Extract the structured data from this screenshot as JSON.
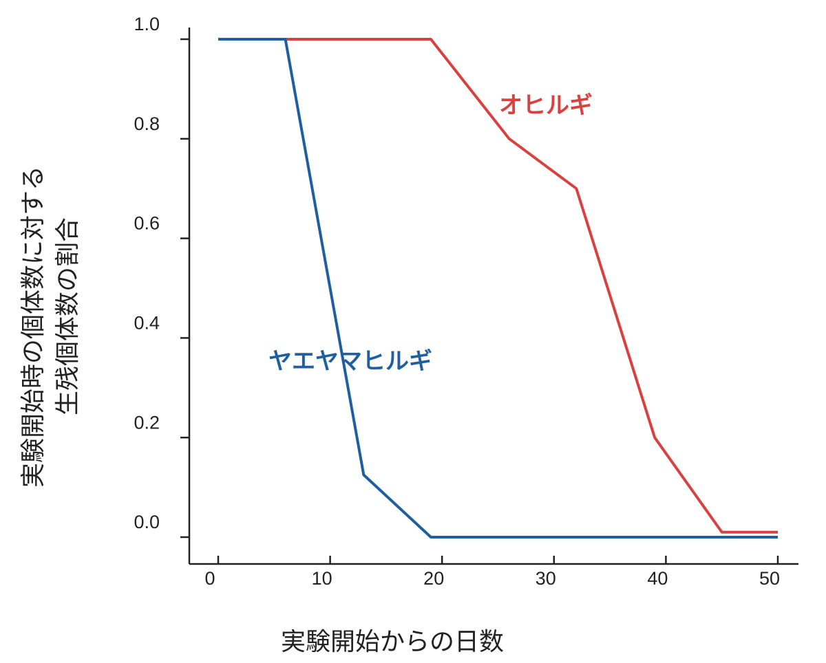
{
  "chart_data": {
    "type": "line",
    "xlabel": "実験開始からの日数",
    "ylabel": [
      "実験開始時の個体数に対する",
      "生残個体数の割合"
    ],
    "x": [
      0,
      6,
      13,
      19,
      26,
      32,
      39,
      45,
      50
    ],
    "series": [
      {
        "name": "オヒルギ",
        "color": "#d9413f",
        "values": [
          1.0,
          1.0,
          1.0,
          1.0,
          0.8,
          0.7,
          0.2,
          0.01,
          0.01
        ]
      },
      {
        "name": "ヤエヤマヒルギ",
        "color": "#1f5fa0",
        "values": [
          1.0,
          1.0,
          0.125,
          0.0,
          0.0,
          0.0,
          0.0,
          0.0,
          0.0
        ]
      }
    ],
    "xlim": [
      0,
      50
    ],
    "xticks": [
      0,
      10,
      20,
      30,
      40,
      50
    ],
    "ylim": [
      0,
      1
    ],
    "yticks": [
      {
        "value": 0,
        "label": "0.0"
      },
      0.2,
      0.4,
      0.6,
      0.8,
      {
        "value": 1,
        "label": "1.0"
      }
    ],
    "grid": false
  }
}
